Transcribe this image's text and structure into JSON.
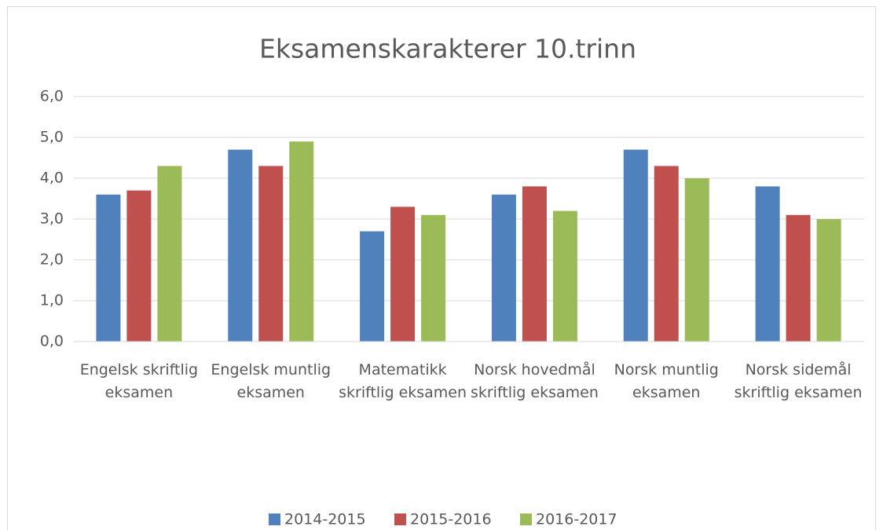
{
  "chart_data": {
    "type": "bar",
    "title": "Eksamenskarakterer 10.trinn",
    "categories": [
      "Engelsk skriftlig eksamen",
      "Engelsk muntlig eksamen",
      "Matematikk skriftlig eksamen",
      "Norsk hovedmål skriftlig eksamen",
      "Norsk muntlig eksamen",
      "Norsk sidemål skriftlig eksamen"
    ],
    "series": [
      {
        "name": "2014-2015",
        "color": "#4f81bd",
        "values": [
          3.6,
          4.7,
          2.7,
          3.6,
          4.7,
          3.8
        ]
      },
      {
        "name": "2015-2016",
        "color": "#c0504d",
        "values": [
          3.7,
          4.3,
          3.3,
          3.8,
          4.3,
          3.1
        ]
      },
      {
        "name": "2016-2017",
        "color": "#9bbb59",
        "values": [
          4.3,
          4.9,
          3.1,
          3.2,
          4.0,
          3.0
        ]
      }
    ],
    "ylim": [
      0,
      6
    ],
    "yticks": [
      {
        "value": 0,
        "label": "0,0"
      },
      {
        "value": 1,
        "label": "1,0"
      },
      {
        "value": 2,
        "label": "2,0"
      },
      {
        "value": 3,
        "label": "3,0"
      },
      {
        "value": 4,
        "label": "4,0"
      },
      {
        "value": 5,
        "label": "5,0"
      },
      {
        "value": 6,
        "label": "6,0"
      }
    ],
    "grid": true,
    "legend": "bottom"
  }
}
